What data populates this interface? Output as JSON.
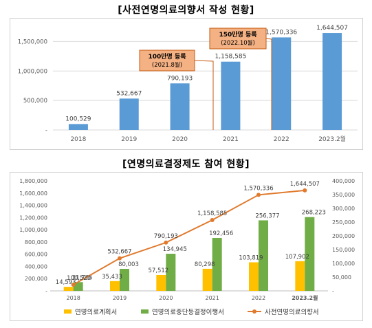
{
  "titles": {
    "top": "[사전연명의료의향서 작성 현황]",
    "bottom": "[연명의료결정제도 참여 현황]"
  },
  "colors": {
    "bar_blue": "#5b9bd5",
    "gold": "#ffc000",
    "green": "#70ad47",
    "orange": "#e07a2e",
    "callout_fill": "#f4b183",
    "callout_border": "#c55a11"
  },
  "chart_data": [
    {
      "type": "bar",
      "title": "[사전연명의료의향서 작성 현황]",
      "categories": [
        "2018",
        "2019",
        "2020",
        "2021",
        "2022",
        "2023.2월"
      ],
      "values": [
        100529,
        532667,
        790193,
        1158585,
        1570336,
        1644507
      ],
      "value_labels": [
        "100,529",
        "532,667",
        "790,193",
        "1,158,585",
        "1,570,336",
        "1,644,507"
      ],
      "ylim": [
        0,
        1750000
      ],
      "yticks": [
        0,
        500000,
        1000000,
        1500000
      ],
      "ytick_labels": [
        "-",
        "500,000",
        "1,000,000",
        "1,500,000"
      ],
      "grid": true,
      "annotations": [
        {
          "line1": "100만명 등록",
          "line2": "(2021.8월)"
        },
        {
          "line1": "150만명 등록",
          "line2": "(2022.10월)"
        }
      ]
    },
    {
      "type": "bar",
      "title": "[연명의료결정제도 참여 현황]",
      "categories": [
        "2018",
        "2019",
        "2020",
        "2021",
        "2022",
        "2023.2월"
      ],
      "series": [
        {
          "name": "연명의료계획서",
          "axis": "right",
          "values": [
            14593,
            35433,
            57512,
            80298,
            103819,
            107902
          ],
          "labels": [
            "14,593",
            "35,433",
            "57,512",
            "80,298",
            "103,819",
            "107,902"
          ]
        },
        {
          "name": "연명의료중단등결정이행서",
          "axis": "right",
          "values": [
            31765,
            80003,
            134945,
            192456,
            256377,
            268223
          ],
          "labels": [
            "31,765",
            "80,003",
            "134,945",
            "192,456",
            "256,377",
            "268,223"
          ]
        },
        {
          "name": "사전연명의료의향서",
          "type": "line",
          "axis": "left",
          "values": [
            100529,
            532667,
            790193,
            1158585,
            1570336,
            1644507
          ],
          "labels": [
            "100,529",
            "532,667",
            "790,193",
            "1,158,585",
            "1,570,336",
            "1,644,507"
          ]
        }
      ],
      "left_ylim": [
        0,
        1800000
      ],
      "left_ticks": [
        "-",
        "200,000",
        "400,000",
        "600,000",
        "800,000",
        "1,000,000",
        "1,200,000",
        "1,400,000",
        "1,600,000",
        "1,800,000"
      ],
      "right_ylim": [
        0,
        400000
      ],
      "right_ticks": [
        "-",
        "50,000",
        "100,000",
        "150,000",
        "200,000",
        "250,000",
        "300,000",
        "350,000",
        "400,000"
      ],
      "legend_position": "bottom",
      "grid": false
    }
  ]
}
